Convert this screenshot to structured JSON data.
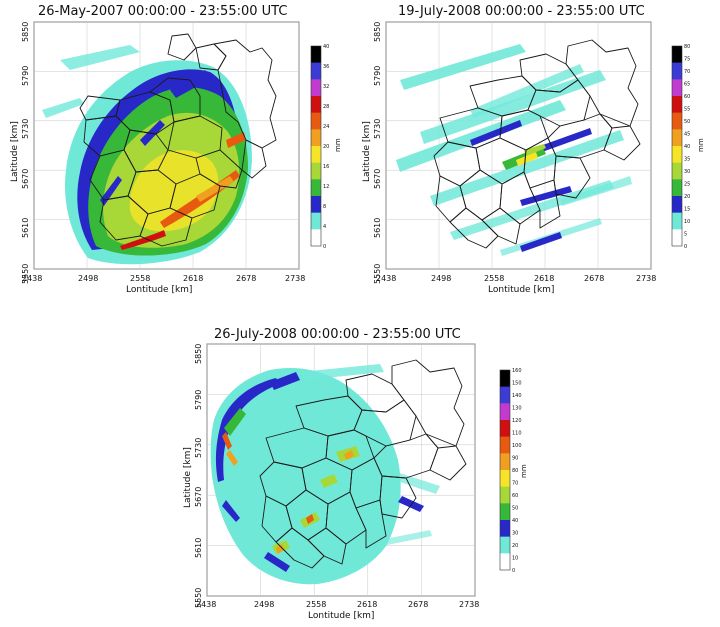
{
  "chart_data": [
    {
      "type": "heatmap",
      "title": "26-May-2007 00:00:00 - 23:55:00 UTC",
      "xlabel": "Lontitude [km]",
      "ylabel": "Latitude [km]",
      "x_ticks": [
        "2438",
        "2498",
        "2558",
        "2618",
        "2678",
        "2738"
      ],
      "y_ticks": [
        "5850",
        "5790",
        "5730",
        "5670",
        "5610",
        "5550"
      ],
      "xlim": [
        2438,
        2738
      ],
      "ylim": [
        5550,
        5850
      ],
      "grid": true,
      "colorbar": {
        "label": "mm",
        "ticks": [
          "40",
          "36",
          "32",
          "28",
          "24",
          "20",
          "16",
          "12",
          "8",
          "4",
          "0"
        ],
        "colors": [
          "#000000",
          "#3b3bd6",
          "#c23ad0",
          "#d01010",
          "#e85a10",
          "#f0a020",
          "#f5e428",
          "#a8d838",
          "#38b838",
          "#2828c8",
          "#70e8d8",
          "#ffffff"
        ]
      }
    },
    {
      "type": "heatmap",
      "title": "19-July-2008 00:00:00 - 23:55:00 UTC",
      "xlabel": "Lontitude [km]",
      "ylabel": "Latitude [km]",
      "x_ticks": [
        "2438",
        "2498",
        "2558",
        "2618",
        "2678",
        "2738"
      ],
      "y_ticks": [
        "5850",
        "5790",
        "5730",
        "5670",
        "5610",
        "5550"
      ],
      "xlim": [
        2438,
        2738
      ],
      "ylim": [
        5550,
        5850
      ],
      "grid": true,
      "colorbar": {
        "label": "mm",
        "ticks": [
          "80",
          "75",
          "70",
          "65",
          "60",
          "55",
          "50",
          "45",
          "40",
          "35",
          "30",
          "25",
          "20",
          "15",
          "10",
          "5",
          "0"
        ],
        "colors": [
          "#000000",
          "#3b3bd6",
          "#c23ad0",
          "#d01010",
          "#e85a10",
          "#f0a020",
          "#f5e428",
          "#a8d838",
          "#38b838",
          "#2828c8",
          "#70e8d8",
          "#ffffff"
        ]
      }
    },
    {
      "type": "heatmap",
      "title": "26-July-2008 00:00:00 - 23:55:00 UTC",
      "xlabel": "Lontitude [km]",
      "ylabel": "Latitude [km]",
      "x_ticks": [
        "2438",
        "2498",
        "2558",
        "2618",
        "2678",
        "2738"
      ],
      "y_ticks": [
        "5850",
        "5790",
        "5730",
        "5670",
        "5610",
        "5550"
      ],
      "xlim": [
        2438,
        2738
      ],
      "ylim": [
        5550,
        5850
      ],
      "grid": true,
      "colorbar": {
        "label": "mm",
        "ticks": [
          "160",
          "150",
          "140",
          "130",
          "120",
          "110",
          "100",
          "90",
          "80",
          "70",
          "60",
          "50",
          "40",
          "30",
          "20",
          "10",
          "0"
        ],
        "colors": [
          "#000000",
          "#3b3bd6",
          "#c23ad0",
          "#d01010",
          "#e85a10",
          "#f0a020",
          "#f5e428",
          "#a8d838",
          "#38b838",
          "#2828c8",
          "#70e8d8",
          "#ffffff"
        ]
      }
    }
  ]
}
